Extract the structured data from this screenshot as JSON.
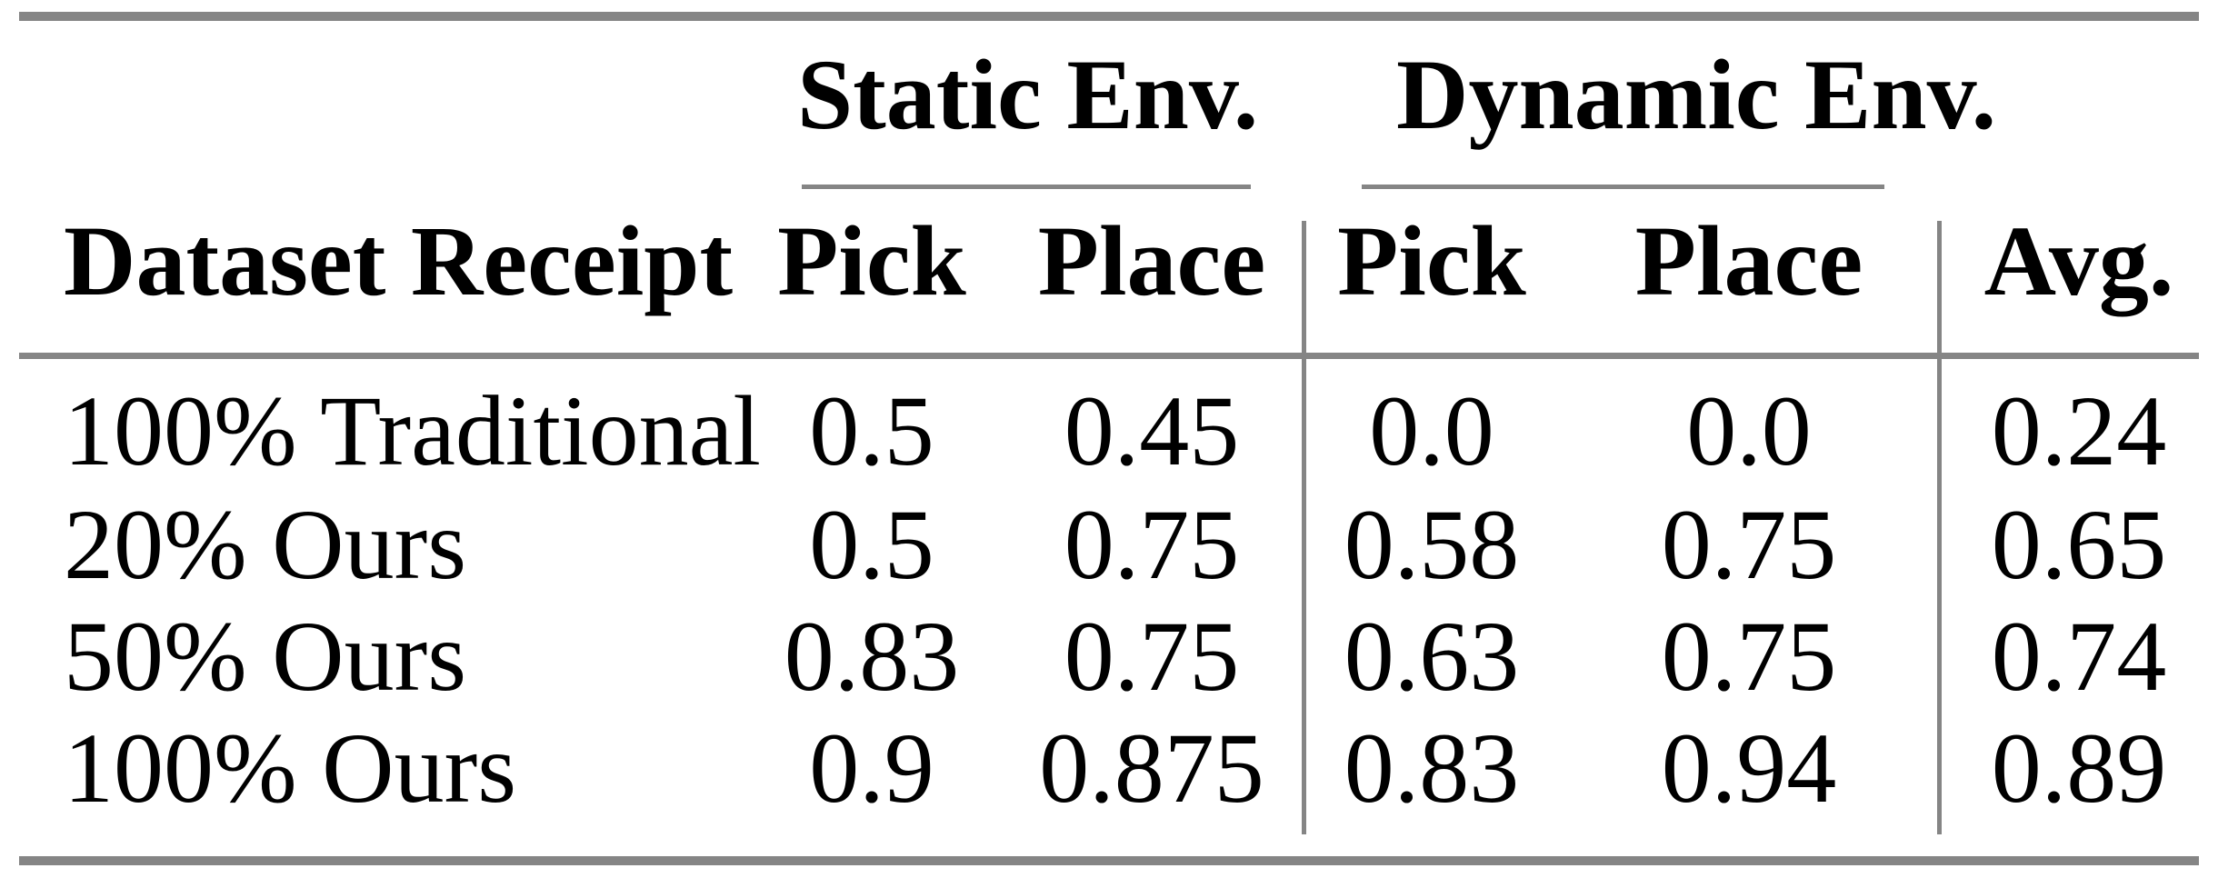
{
  "table": {
    "group_headers": {
      "static": "Static Env.",
      "dynamic": "Dynamic Env."
    },
    "columns": {
      "row_label": "Dataset Receipt",
      "static_pick": "Pick",
      "static_place": "Place",
      "dynamic_pick": "Pick",
      "dynamic_place": "Place",
      "avg": "Avg."
    },
    "rows": [
      {
        "label": "100% Traditional",
        "static_pick": "0.5",
        "static_place": "0.45",
        "dynamic_pick": "0.0",
        "dynamic_place": "0.0",
        "avg": "0.24"
      },
      {
        "label": "20% Ours",
        "static_pick": "0.5",
        "static_place": "0.75",
        "dynamic_pick": "0.58",
        "dynamic_place": "0.75",
        "avg": "0.65"
      },
      {
        "label": "50% Ours",
        "static_pick": "0.83",
        "static_place": "0.75",
        "dynamic_pick": "0.63",
        "dynamic_place": "0.75",
        "avg": "0.74"
      },
      {
        "label": "100% Ours",
        "static_pick": "0.9",
        "static_place": "0.875",
        "dynamic_pick": "0.83",
        "dynamic_place": "0.94",
        "avg": "0.89"
      }
    ]
  },
  "colors": {
    "rule": "#858585",
    "text": "#000000",
    "background": "#ffffff"
  },
  "chart_data": {
    "type": "table",
    "title": "",
    "column_groups": [
      "",
      "Static Env.",
      "Static Env.",
      "Dynamic Env.",
      "Dynamic Env.",
      ""
    ],
    "columns": [
      "Dataset Receipt",
      "Pick",
      "Place",
      "Pick",
      "Place",
      "Avg."
    ],
    "rows": [
      [
        "100% Traditional",
        0.5,
        0.45,
        0.0,
        0.0,
        0.24
      ],
      [
        "20% Ours",
        0.5,
        0.75,
        0.58,
        0.75,
        0.65
      ],
      [
        "50% Ours",
        0.83,
        0.75,
        0.63,
        0.75,
        0.74
      ],
      [
        "100% Ours",
        0.9,
        0.875,
        0.83,
        0.94,
        0.89
      ]
    ]
  }
}
